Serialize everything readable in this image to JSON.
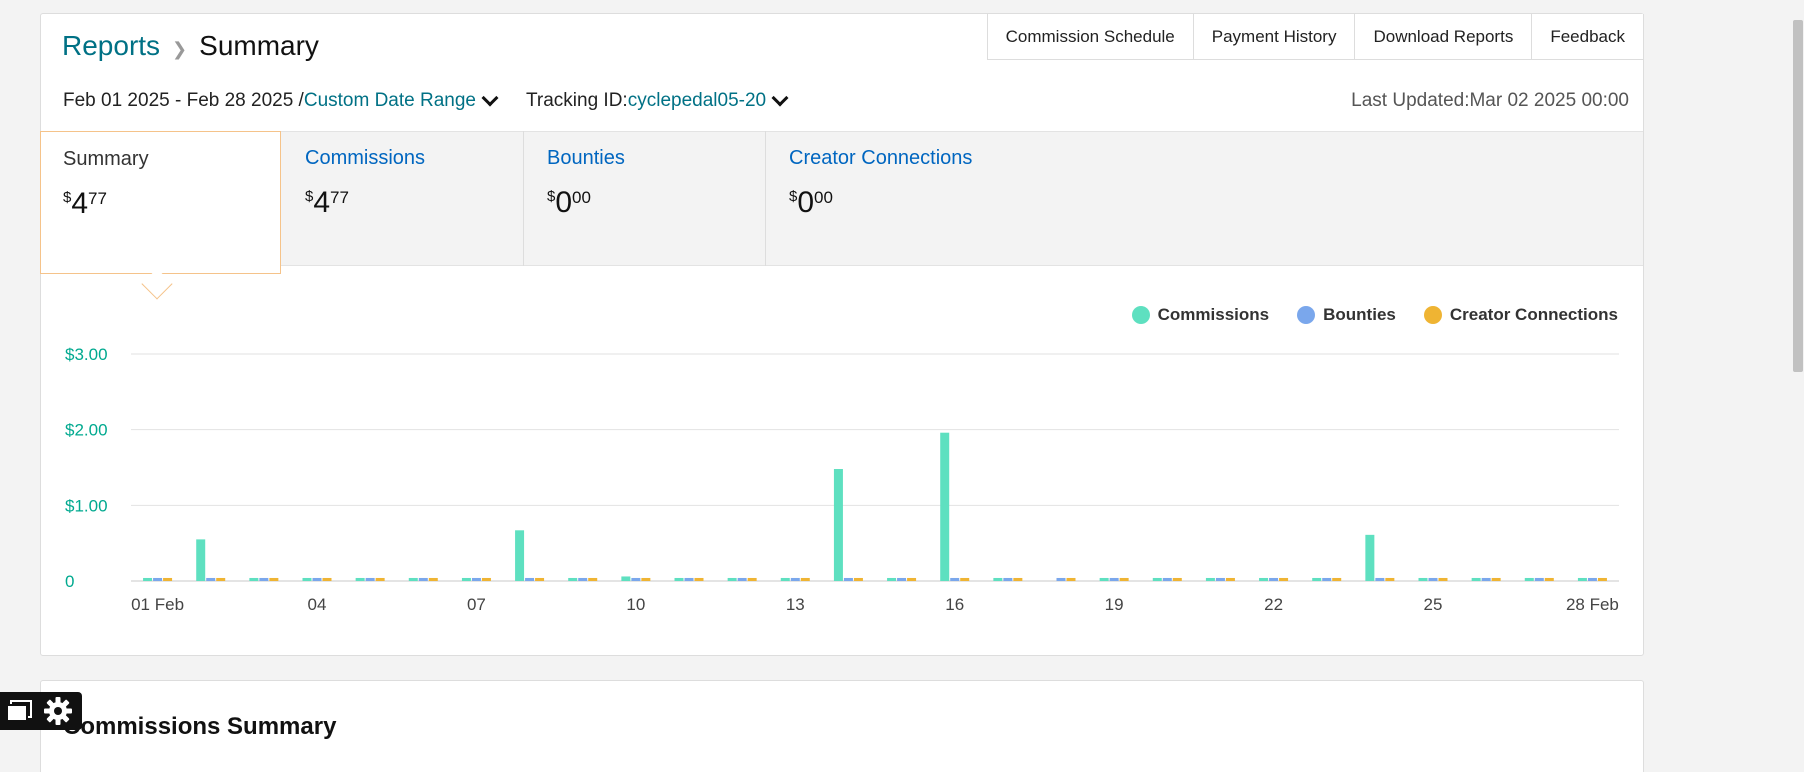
{
  "breadcrumb": {
    "parent": "Reports",
    "current": "Summary"
  },
  "top_links": [
    "Commission Schedule",
    "Payment History",
    "Download Reports",
    "Feedback"
  ],
  "date_range": {
    "text": "Feb 01 2025 - Feb 28 2025 /",
    "selector": "Custom Date Range"
  },
  "tracking": {
    "label": "Tracking ID:",
    "value": "cyclepedal05-20"
  },
  "last_updated": {
    "label": "Last Updated:",
    "value": "Mar 02 2025 00:00"
  },
  "tabs": [
    {
      "name": "Summary",
      "currency": "$",
      "dollars": "4",
      "cents": "77"
    },
    {
      "name": "Commissions",
      "currency": "$",
      "dollars": "4",
      "cents": "77"
    },
    {
      "name": "Bounties",
      "currency": "$",
      "dollars": "0",
      "cents": "00"
    },
    {
      "name": "Creator Connections",
      "currency": "$",
      "dollars": "0",
      "cents": "00"
    }
  ],
  "colors": {
    "commissions": "#5ee0c0",
    "bounties": "#7aa7ec",
    "creator": "#efb433",
    "teal": "#007185",
    "link": "#0066c0"
  },
  "chart_data": {
    "type": "bar",
    "categories": [
      "01 Feb",
      "02",
      "03",
      "04",
      "05",
      "06",
      "07",
      "08",
      "09",
      "10",
      "11",
      "12",
      "13",
      "14",
      "15",
      "16",
      "17",
      "18",
      "19",
      "20",
      "21",
      "22",
      "23",
      "24",
      "25",
      "26",
      "27",
      "28 Feb"
    ],
    "x_tick_labels": [
      "01 Feb",
      "04",
      "07",
      "10",
      "13",
      "16",
      "19",
      "22",
      "25",
      "28 Feb"
    ],
    "y_tick_labels": [
      "0",
      "$1.00",
      "$2.00",
      "$3.00"
    ],
    "ylim": [
      0,
      3
    ],
    "grid": true,
    "legend": "top-right",
    "series": [
      {
        "name": "Commissions",
        "values": [
          0.04,
          0.55,
          0.04,
          0.04,
          0.04,
          0.04,
          0.04,
          0.67,
          0.04,
          0.06,
          0.04,
          0.04,
          0.04,
          1.48,
          0.04,
          1.96,
          0.04,
          0.0,
          0.04,
          0.04,
          0.04,
          0.04,
          0.04,
          0.61,
          0.04,
          0.04,
          0.04,
          0.04
        ]
      },
      {
        "name": "Bounties",
        "values": [
          0.04,
          0.04,
          0.04,
          0.04,
          0.04,
          0.04,
          0.04,
          0.04,
          0.04,
          0.04,
          0.04,
          0.04,
          0.04,
          0.04,
          0.04,
          0.04,
          0.04,
          0.04,
          0.04,
          0.04,
          0.04,
          0.04,
          0.04,
          0.04,
          0.04,
          0.04,
          0.04,
          0.04
        ]
      },
      {
        "name": "Creator Connections",
        "values": [
          0.04,
          0.04,
          0.04,
          0.04,
          0.04,
          0.04,
          0.04,
          0.04,
          0.04,
          0.04,
          0.04,
          0.04,
          0.04,
          0.04,
          0.04,
          0.04,
          0.04,
          0.04,
          0.04,
          0.04,
          0.04,
          0.04,
          0.04,
          0.04,
          0.04,
          0.04,
          0.04,
          0.04
        ]
      }
    ]
  },
  "section2": {
    "title": "Commissions Summary"
  }
}
